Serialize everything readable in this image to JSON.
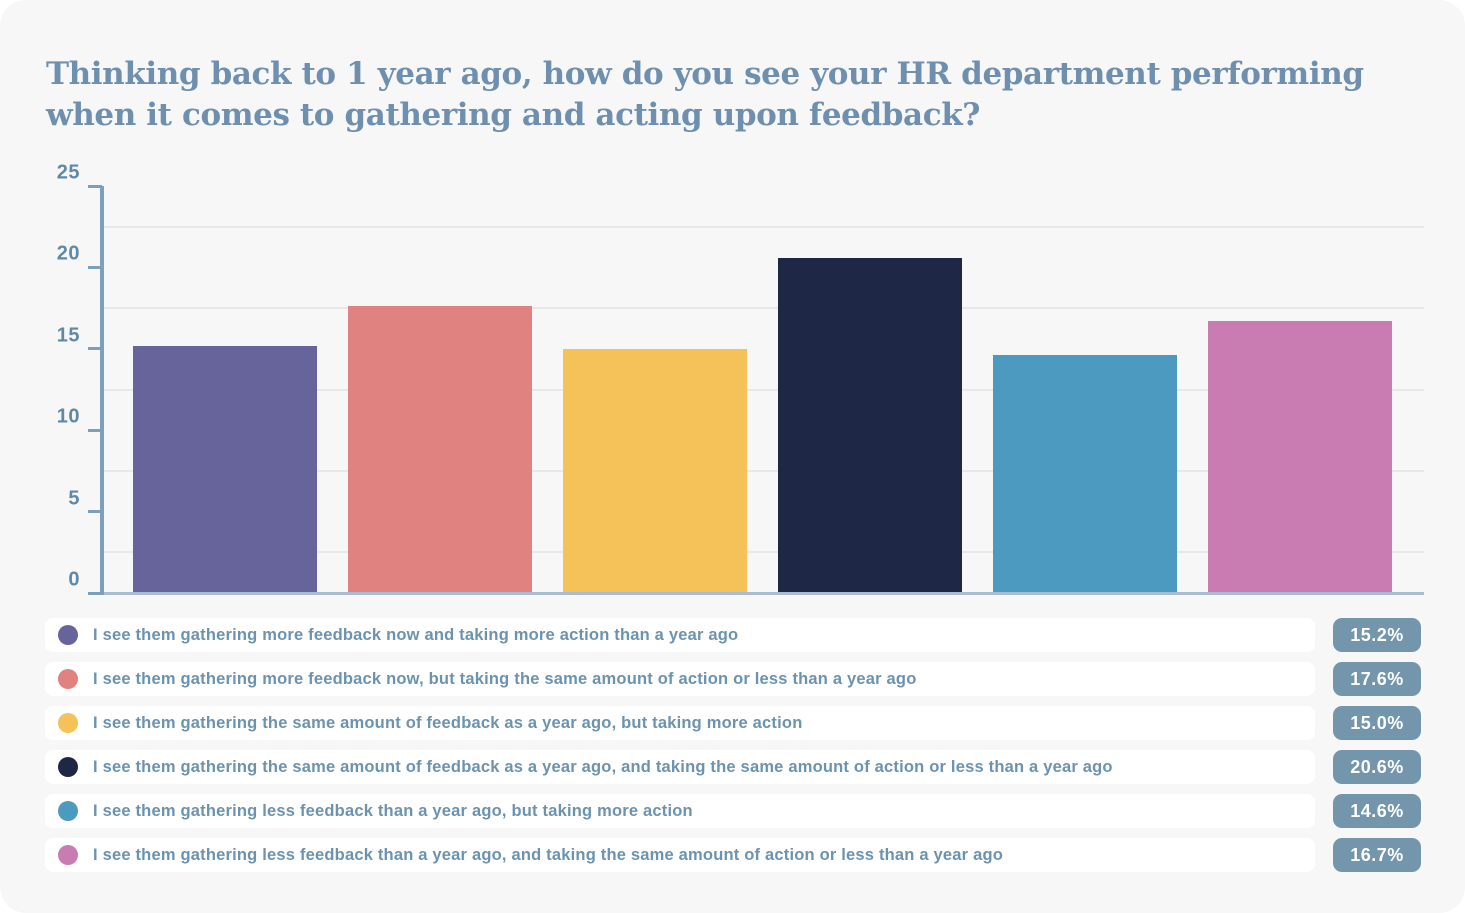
{
  "title": "Thinking back to 1 year ago, how do you see your HR department performing\nwhen it comes to gathering and acting upon feedback?",
  "chart_data": {
    "type": "bar",
    "title": "Thinking back to 1 year ago, how do you see your HR department performing when it comes to gathering and acting upon feedback?",
    "xlabel": "",
    "ylabel": "",
    "ylim": [
      0,
      25
    ],
    "yticks": [
      0,
      5,
      10,
      15,
      20,
      25
    ],
    "minor_gridlines": [
      2.5,
      7.5,
      12.5,
      17.5,
      22.5
    ],
    "grid": true,
    "legend_position": "bottom",
    "series": [
      {
        "label": "I see them gathering more feedback now and taking more action than a year ago",
        "value": 15.2,
        "value_label": "15.2%",
        "color": "#67649B"
      },
      {
        "label": "I see them gathering more feedback now, but taking the same amount of action or less than a year ago",
        "value": 17.6,
        "value_label": "17.6%",
        "color": "#E08380"
      },
      {
        "label": "I see them gathering the same amount of feedback as a year ago, but taking more action",
        "value": 15.0,
        "value_label": "15.0%",
        "color": "#F5C159"
      },
      {
        "label": "I see them gathering the same amount of feedback as a year ago, and taking the same amount of action or less than a year ago",
        "value": 20.6,
        "value_label": "20.6%",
        "color": "#1F2747"
      },
      {
        "label": "I see them gathering less feedback than a year ago, but taking more action",
        "value": 14.6,
        "value_label": "14.6%",
        "color": "#4C9ABF"
      },
      {
        "label": "I see them gathering less feedback than a year ago, and taking the same amount of action or less than a year ago",
        "value": 16.7,
        "value_label": "16.7%",
        "color": "#C97CB2"
      }
    ]
  },
  "style_colors": {
    "card_background": "#F7F7F8",
    "title_text": "#6E90AE",
    "axis": "#7BA0BC",
    "axis_baseline": "#A9BDD0",
    "tick_label": "#5E89A8",
    "gridline": "#E8E8EB",
    "legend_text": "#6B93B0",
    "badge_background": "#7496AD",
    "badge_text": "#FFFFFF"
  }
}
